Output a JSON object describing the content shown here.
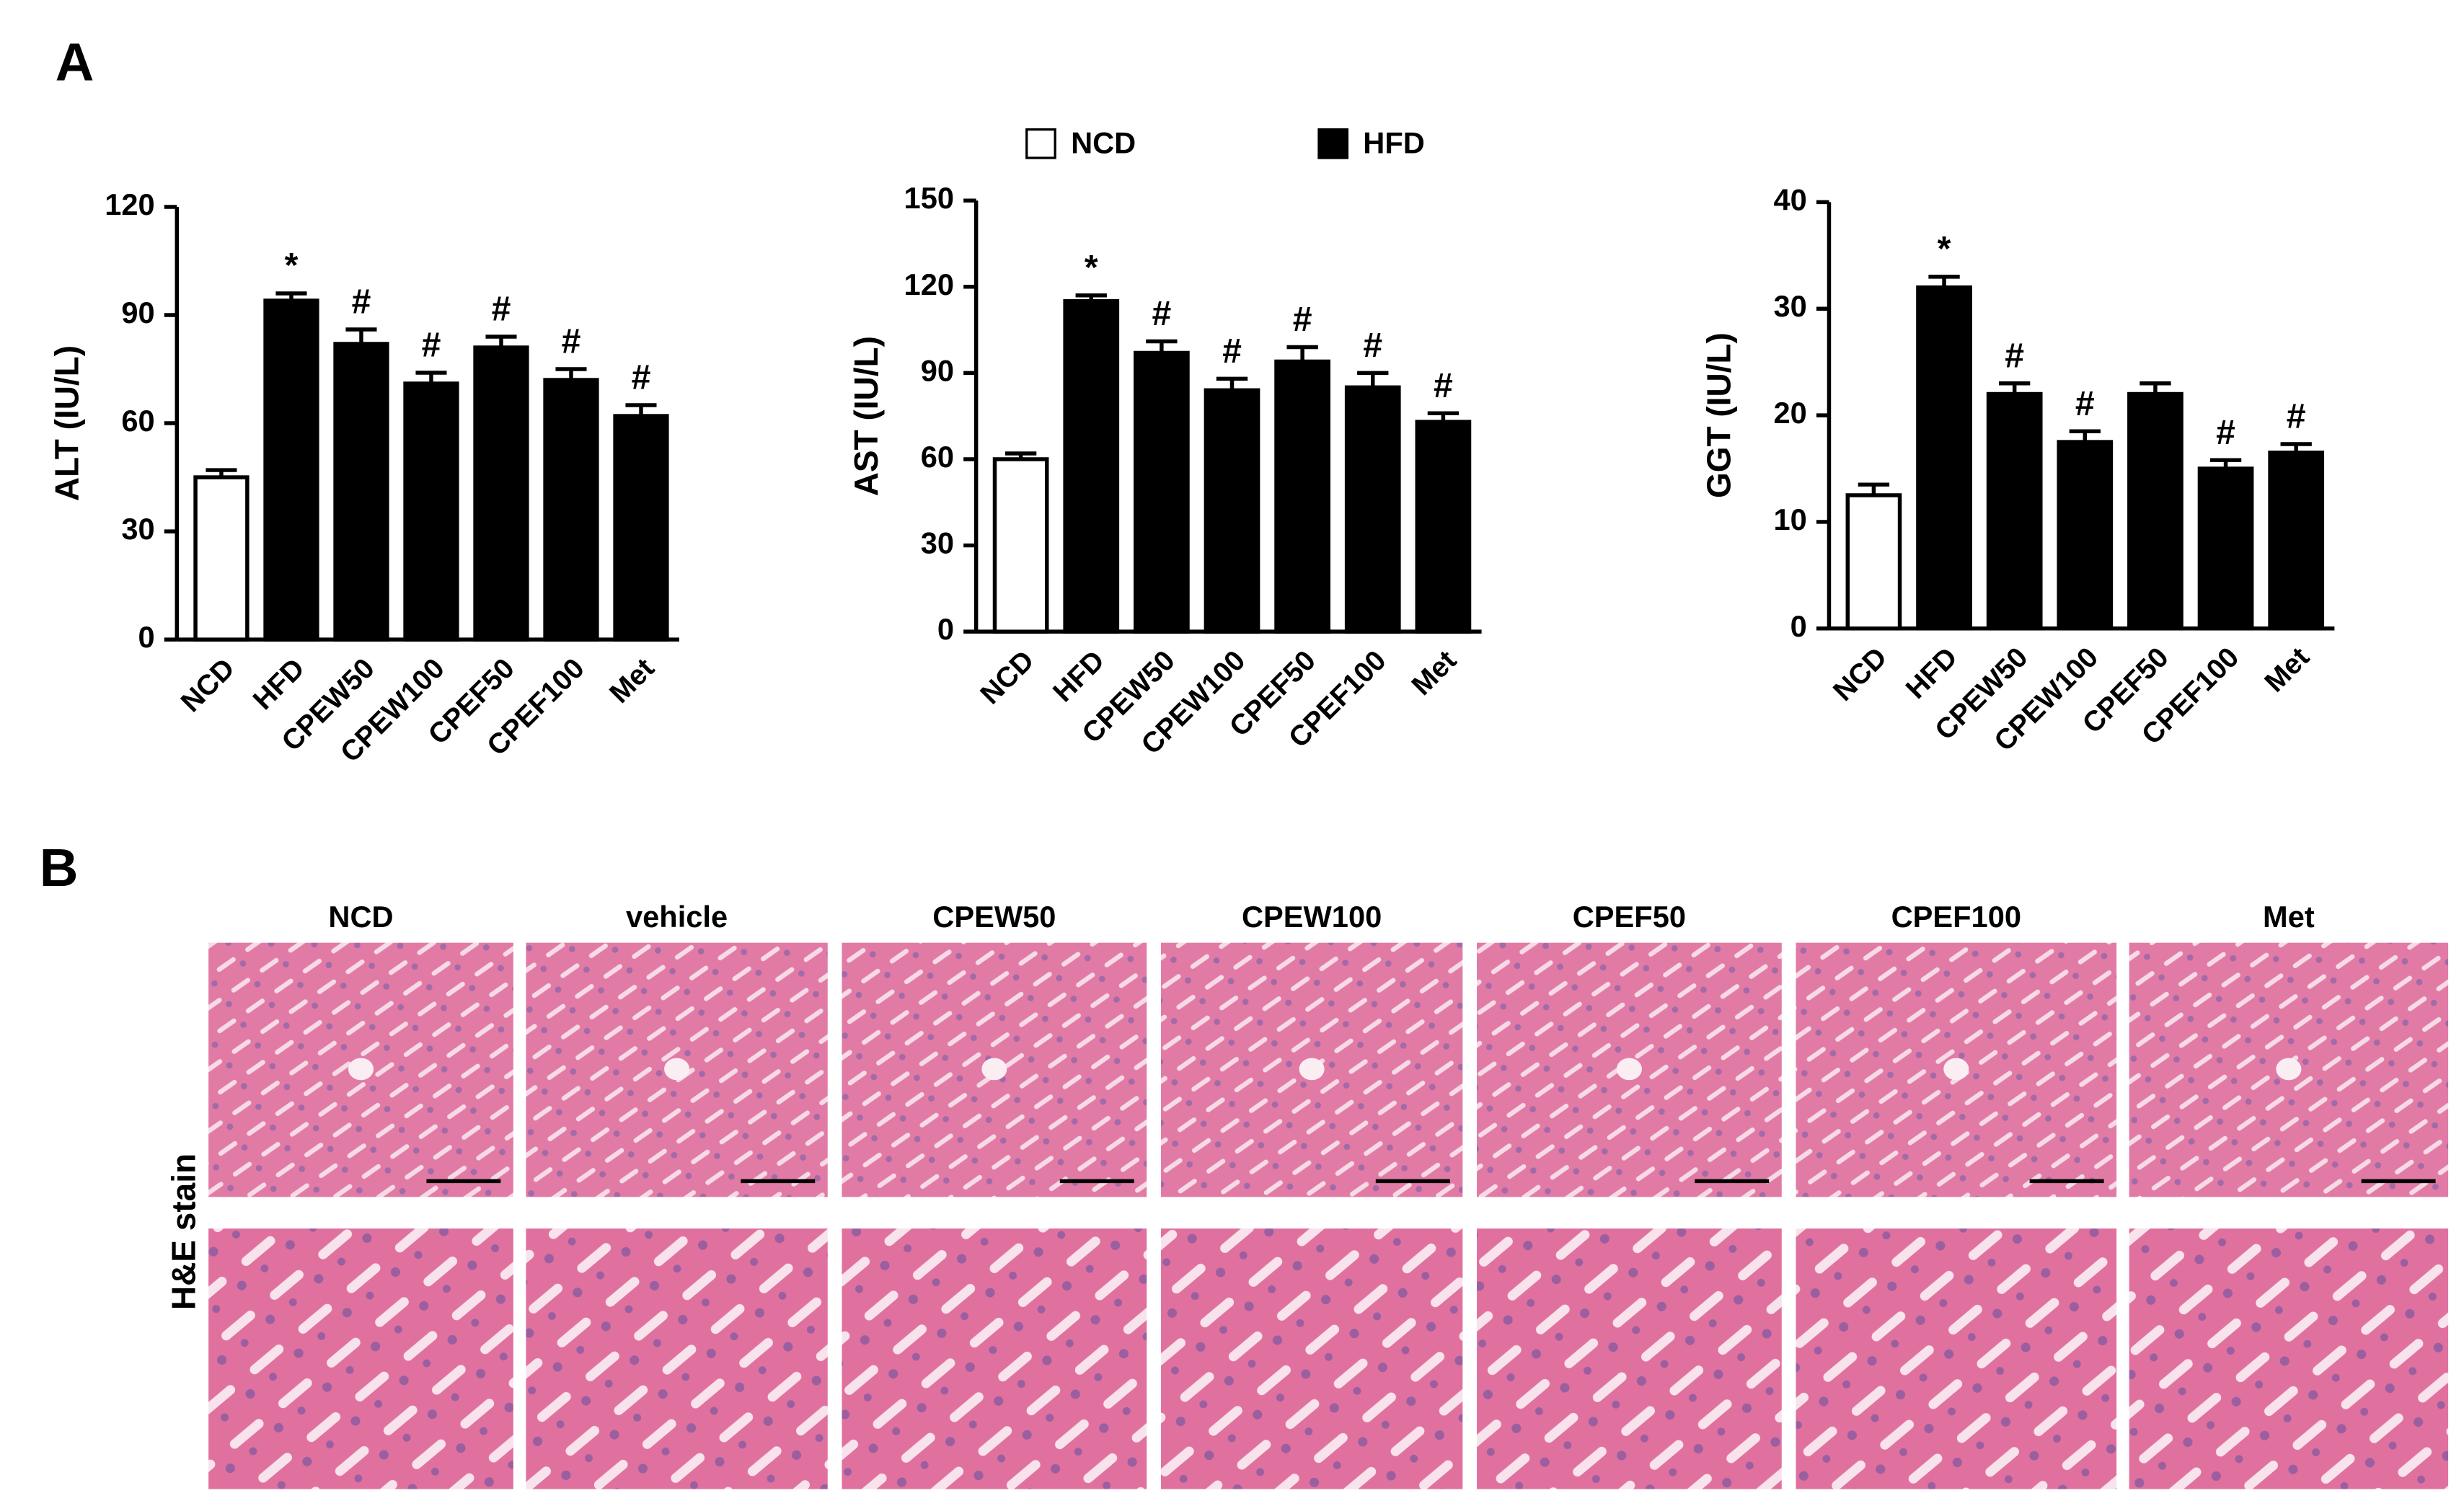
{
  "panel_labels": [
    "A",
    "B"
  ],
  "legend": [
    {
      "name": "NCD",
      "color": "#ffffff"
    },
    {
      "name": "HFD",
      "color": "#000000"
    }
  ],
  "chart_data": [
    {
      "type": "bar",
      "ylabel": "ALT (IU/L)",
      "categories": [
        "NCD",
        "HFD",
        "CPEW50",
        "CPEW100",
        "CPEF50",
        "CPEF100",
        "Met"
      ],
      "values": [
        45,
        94,
        82,
        71,
        81,
        72,
        62
      ],
      "errors": [
        2,
        2,
        4,
        3,
        3,
        3,
        3
      ],
      "annotations": [
        null,
        "*",
        "#",
        "#",
        "#",
        "#",
        "#"
      ],
      "colors": [
        "#ffffff",
        "#000000",
        "#000000",
        "#000000",
        "#000000",
        "#000000",
        "#000000"
      ],
      "ylim": [
        0,
        120
      ],
      "yticks": [
        0,
        30,
        60,
        90,
        120
      ]
    },
    {
      "type": "bar",
      "ylabel": "AST (IU/L)",
      "categories": [
        "NCD",
        "HFD",
        "CPEW50",
        "CPEW100",
        "CPEF50",
        "CPEF100",
        "Met"
      ],
      "values": [
        60,
        115,
        97,
        84,
        94,
        85,
        73
      ],
      "errors": [
        2,
        2,
        4,
        4,
        5,
        5,
        3
      ],
      "annotations": [
        null,
        "*",
        "#",
        "#",
        "#",
        "#",
        "#"
      ],
      "colors": [
        "#ffffff",
        "#000000",
        "#000000",
        "#000000",
        "#000000",
        "#000000",
        "#000000"
      ],
      "ylim": [
        0,
        150
      ],
      "yticks": [
        0,
        30,
        60,
        90,
        120,
        150
      ]
    },
    {
      "type": "bar",
      "ylabel": "GGT (IU/L)",
      "categories": [
        "NCD",
        "HFD",
        "CPEW50",
        "CPEW100",
        "CPEF50",
        "CPEF100",
        "Met"
      ],
      "values": [
        12.5,
        32,
        22,
        17.5,
        22,
        15,
        16.5
      ],
      "errors": [
        1,
        1,
        1,
        1,
        1,
        0.8,
        0.8
      ],
      "annotations": [
        null,
        "*",
        "#",
        "#",
        null,
        "#",
        "#"
      ],
      "colors": [
        "#ffffff",
        "#000000",
        "#000000",
        "#000000",
        "#000000",
        "#000000",
        "#000000"
      ],
      "ylim": [
        0,
        40
      ],
      "yticks": [
        0,
        10,
        20,
        30,
        40
      ]
    }
  ],
  "histology": {
    "row_label": "H&E stain",
    "columns": [
      "NCD",
      "vehicle",
      "CPEW50",
      "CPEW100",
      "CPEF50",
      "CPEF100",
      "Met"
    ]
  }
}
